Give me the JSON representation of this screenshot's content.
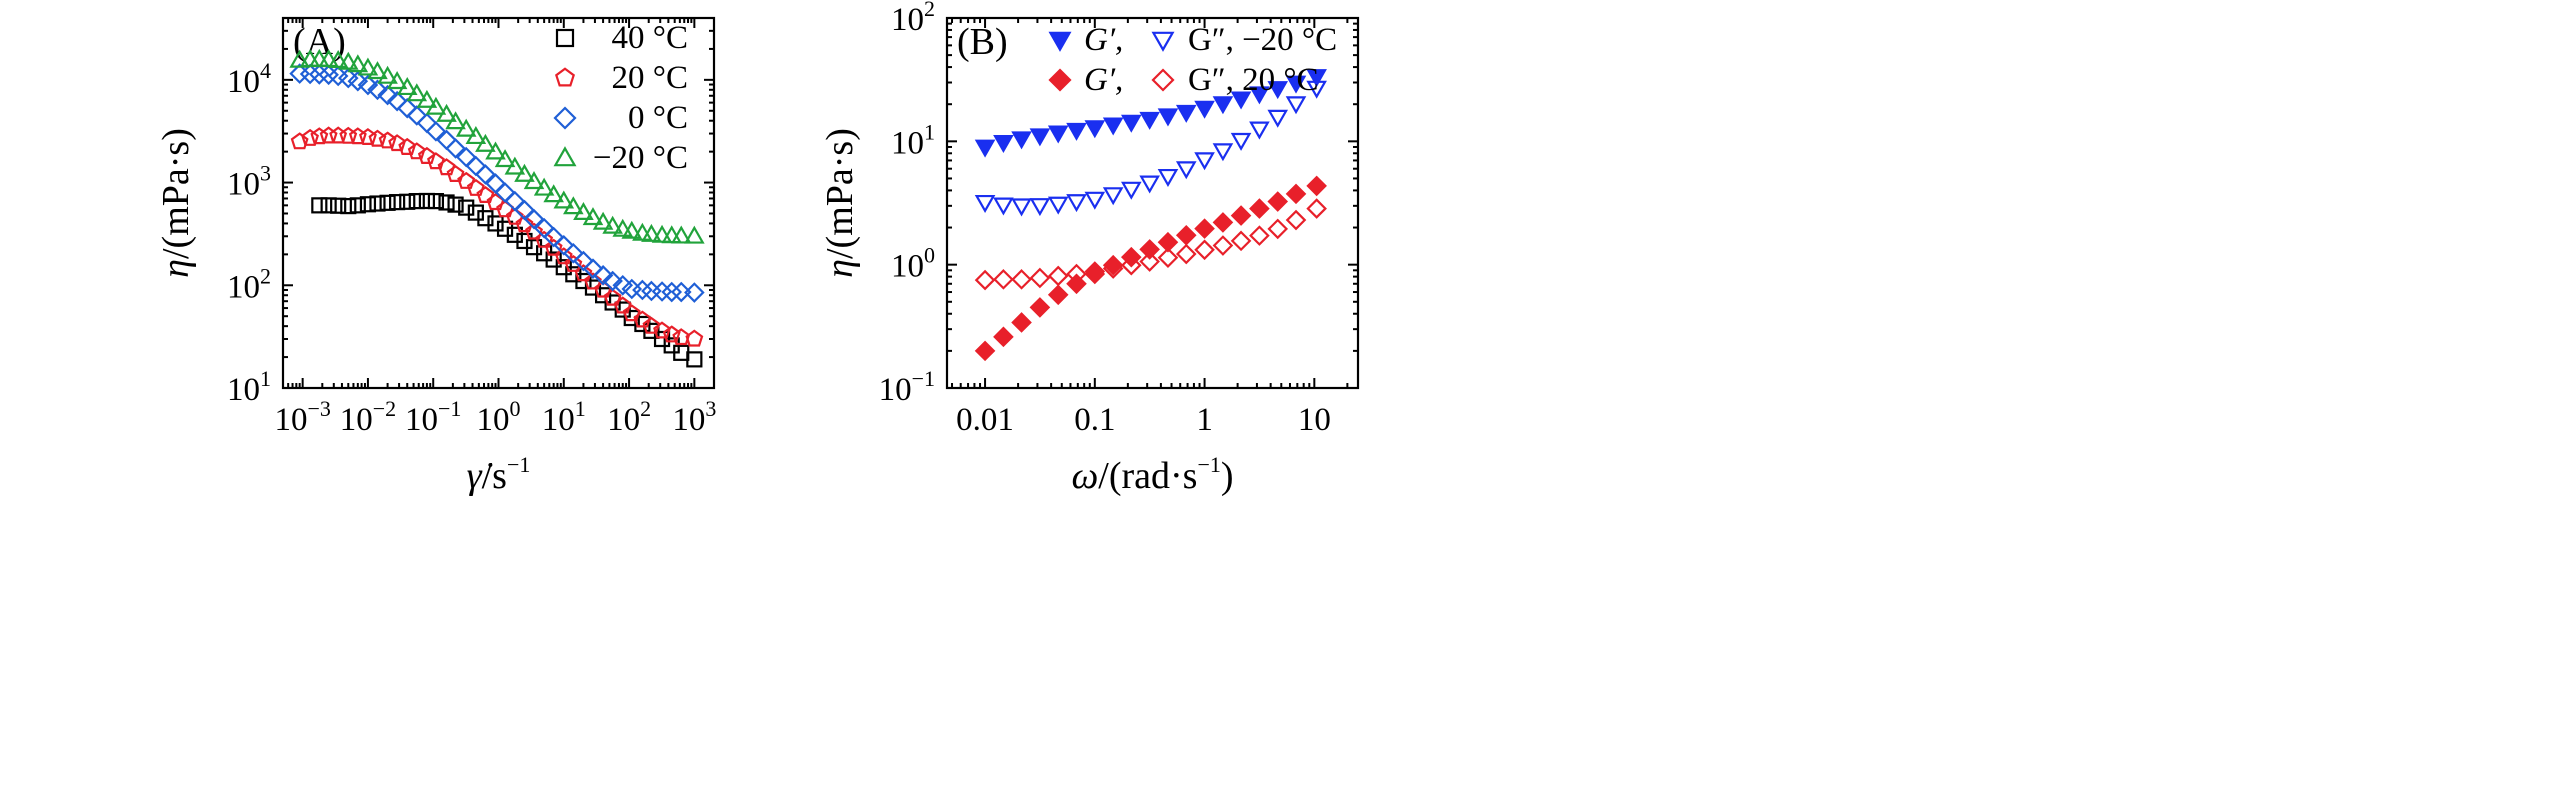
{
  "chart_data": [
    {
      "type": "scatter",
      "panel_label": "(A)",
      "xscale": "log",
      "yscale": "log",
      "xlim": [
        0.0005,
        2000
      ],
      "ylim": [
        10,
        40000
      ],
      "xlabel": {
        "main": "γ̇",
        "unit_base": "/s",
        "unit_exp": "−1"
      },
      "ylabel": {
        "main": "η",
        "unit": "/(mPa·s)"
      },
      "xticks": [
        {
          "base": "10",
          "exp": "−3",
          "value": 0.001
        },
        {
          "base": "10",
          "exp": "−2",
          "value": 0.01
        },
        {
          "base": "10",
          "exp": "−1",
          "value": 0.1
        },
        {
          "base": "10",
          "exp": "0",
          "value": 1
        },
        {
          "base": "10",
          "exp": "1",
          "value": 10
        },
        {
          "base": "10",
          "exp": "2",
          "value": 100
        },
        {
          "base": "10",
          "exp": "3",
          "value": 1000
        }
      ],
      "yticks": [
        {
          "base": "10",
          "exp": "1",
          "value": 10
        },
        {
          "base": "10",
          "exp": "2",
          "value": 100
        },
        {
          "base": "10",
          "exp": "3",
          "value": 1000
        },
        {
          "base": "10",
          "exp": "4",
          "value": 10000
        }
      ],
      "legend_position": "top-right",
      "series": [
        {
          "name": "40 °C",
          "marker": "square",
          "filled": false,
          "color": "#000000",
          "x": [
            0.0018,
            0.0025,
            0.0035,
            0.005,
            0.007,
            0.01,
            0.014,
            0.02,
            0.028,
            0.04,
            0.056,
            0.08,
            0.11,
            0.16,
            0.22,
            0.32,
            0.45,
            0.63,
            0.9,
            1.26,
            1.78,
            2.5,
            3.5,
            5,
            7,
            10,
            14,
            20,
            28,
            40,
            56,
            80,
            110,
            160,
            220,
            320,
            450,
            630,
            1000
          ],
          "y": [
            600,
            600,
            595,
            590,
            600,
            615,
            625,
            635,
            645,
            650,
            660,
            662,
            660,
            640,
            610,
            570,
            510,
            450,
            400,
            355,
            310,
            270,
            235,
            205,
            178,
            150,
            128,
            110,
            95,
            80,
            68,
            58,
            48,
            42,
            36,
            30,
            26,
            22,
            19
          ]
        },
        {
          "name": "20 °C",
          "marker": "pentagon",
          "filled": false,
          "color": "#e8202a",
          "x": [
            0.0009,
            0.0013,
            0.0018,
            0.0025,
            0.0035,
            0.005,
            0.007,
            0.01,
            0.014,
            0.02,
            0.028,
            0.04,
            0.056,
            0.08,
            0.11,
            0.16,
            0.22,
            0.32,
            0.45,
            0.63,
            0.9,
            1.26,
            1.78,
            2.5,
            3.5,
            5,
            7,
            10,
            14,
            20,
            28,
            40,
            56,
            80,
            110,
            160,
            220,
            320,
            450,
            630,
            1000
          ],
          "y": [
            2500,
            2700,
            2800,
            2850,
            2850,
            2830,
            2800,
            2750,
            2650,
            2550,
            2400,
            2200,
            2000,
            1800,
            1600,
            1400,
            1200,
            1030,
            880,
            750,
            640,
            545,
            460,
            390,
            330,
            275,
            230,
            190,
            160,
            130,
            108,
            90,
            75,
            63,
            53,
            46,
            40,
            36,
            33,
            31,
            30
          ]
        },
        {
          "name": "0 °C",
          "marker": "diamond",
          "filled": false,
          "color": "#1f5fd6",
          "x": [
            0.0009,
            0.0013,
            0.0018,
            0.0025,
            0.0035,
            0.005,
            0.007,
            0.01,
            0.014,
            0.02,
            0.028,
            0.04,
            0.056,
            0.08,
            0.11,
            0.16,
            0.22,
            0.32,
            0.45,
            0.63,
            0.9,
            1.26,
            1.78,
            2.5,
            3.5,
            5,
            7,
            10,
            14,
            20,
            28,
            40,
            56,
            80,
            110,
            160,
            220,
            320,
            450,
            630,
            1000
          ],
          "y": [
            11500,
            11400,
            11300,
            11200,
            10900,
            10400,
            9700,
            8900,
            8000,
            7100,
            6200,
            5300,
            4500,
            3800,
            3150,
            2600,
            2150,
            1770,
            1450,
            1200,
            980,
            800,
            660,
            540,
            440,
            360,
            295,
            245,
            205,
            172,
            145,
            125,
            110,
            100,
            92,
            90,
            88,
            87,
            86,
            86,
            85
          ]
        },
        {
          "name": "−20 °C",
          "marker": "triangle-up",
          "filled": false,
          "color": "#21a33b",
          "x": [
            0.0009,
            0.0013,
            0.0018,
            0.0025,
            0.0035,
            0.005,
            0.007,
            0.01,
            0.014,
            0.02,
            0.028,
            0.04,
            0.056,
            0.08,
            0.11,
            0.16,
            0.22,
            0.32,
            0.45,
            0.63,
            0.9,
            1.26,
            1.78,
            2.5,
            3.5,
            5,
            7,
            10,
            14,
            20,
            28,
            40,
            56,
            80,
            110,
            160,
            220,
            320,
            450,
            630,
            1000
          ],
          "y": [
            15500,
            15700,
            15800,
            15700,
            15400,
            14800,
            14000,
            13000,
            12000,
            10800,
            9600,
            8400,
            7300,
            6300,
            5400,
            4600,
            3900,
            3300,
            2800,
            2350,
            1980,
            1670,
            1410,
            1200,
            1020,
            880,
            760,
            660,
            580,
            510,
            455,
            410,
            375,
            350,
            335,
            320,
            312,
            306,
            303,
            301,
            300
          ]
        }
      ]
    },
    {
      "type": "scatter",
      "panel_label": "(B)",
      "xscale": "log",
      "yscale": "log",
      "xlim": [
        0.0045,
        25
      ],
      "ylim": [
        0.1,
        100
      ],
      "xlabel": {
        "main": "ω",
        "unit_base": "/(rad·s",
        "unit_exp": "−1",
        "unit_close": ")"
      },
      "ylabel": {
        "main": "η",
        "unit": "/(mPa·s)"
      },
      "xticks": [
        {
          "label": "0.01",
          "value": 0.01
        },
        {
          "label": "0.1",
          "value": 0.1
        },
        {
          "label": "1",
          "value": 1
        },
        {
          "label": "10",
          "value": 10
        }
      ],
      "yticks": [
        {
          "base": "10",
          "exp": "−1",
          "value": 0.1
        },
        {
          "base": "10",
          "exp": "0",
          "value": 1
        },
        {
          "base": "10",
          "exp": "1",
          "value": 10
        },
        {
          "base": "10",
          "exp": "2",
          "value": 100
        }
      ],
      "legend_position": "top-center",
      "legend_rows": [
        {
          "text1": "G′, ",
          "text2": "G″, −20 °C",
          "color": "#1a2ff0",
          "marker": "triangle-down"
        },
        {
          "text1": "G′, ",
          "text2": "G″, 20 °C",
          "color": "#e8202a",
          "marker": "diamond"
        }
      ],
      "series": [
        {
          "name": "G′ −20 °C",
          "marker": "triangle-down",
          "filled": true,
          "color": "#1a2ff0",
          "x": [
            0.01,
            0.0147,
            0.0215,
            0.0316,
            0.0464,
            0.0681,
            0.1,
            0.147,
            0.215,
            0.316,
            0.464,
            0.681,
            1,
            1.47,
            2.15,
            3.16,
            4.64,
            6.81,
            10.5
          ],
          "y": [
            9,
            9.8,
            10.5,
            11.1,
            11.7,
            12.3,
            12.9,
            13.6,
            14.3,
            15.1,
            16.1,
            17.2,
            18.6,
            20.2,
            22.1,
            24.3,
            26.8,
            29.7,
            33.5
          ]
        },
        {
          "name": "G″ −20 °C",
          "marker": "triangle-down",
          "filled": false,
          "color": "#1a2ff0",
          "x": [
            0.01,
            0.0147,
            0.0215,
            0.0316,
            0.0464,
            0.0681,
            0.1,
            0.147,
            0.215,
            0.316,
            0.464,
            0.681,
            1,
            1.47,
            2.15,
            3.16,
            4.64,
            6.81,
            10.5
          ],
          "y": [
            3.2,
            3.05,
            3.0,
            3.02,
            3.1,
            3.25,
            3.4,
            3.7,
            4.1,
            4.6,
            5.2,
            6.0,
            7.1,
            8.4,
            10.2,
            12.6,
            15.7,
            20.2,
            27
          ]
        },
        {
          "name": "G′ 20 °C",
          "marker": "diamond",
          "filled": true,
          "color": "#e8202a",
          "x": [
            0.01,
            0.0147,
            0.0215,
            0.0316,
            0.0464,
            0.0681,
            0.1,
            0.147,
            0.215,
            0.316,
            0.464,
            0.681,
            1,
            1.47,
            2.15,
            3.16,
            4.64,
            6.81,
            10.5
          ],
          "y": [
            0.2,
            0.26,
            0.34,
            0.45,
            0.57,
            0.7,
            0.84,
            0.99,
            1.15,
            1.33,
            1.52,
            1.73,
            1.96,
            2.2,
            2.5,
            2.85,
            3.25,
            3.75,
            4.35
          ]
        },
        {
          "name": "G″ 20 °C",
          "marker": "diamond",
          "filled": false,
          "color": "#e8202a",
          "x": [
            0.01,
            0.0147,
            0.0215,
            0.0316,
            0.0464,
            0.0681,
            0.1,
            0.147,
            0.215,
            0.316,
            0.464,
            0.681,
            1,
            1.47,
            2.15,
            3.16,
            4.64,
            6.81,
            10.5
          ],
          "y": [
            0.75,
            0.76,
            0.76,
            0.78,
            0.81,
            0.84,
            0.88,
            0.93,
            0.99,
            1.06,
            1.14,
            1.22,
            1.32,
            1.43,
            1.56,
            1.72,
            1.95,
            2.3,
            2.85
          ]
        }
      ]
    }
  ]
}
